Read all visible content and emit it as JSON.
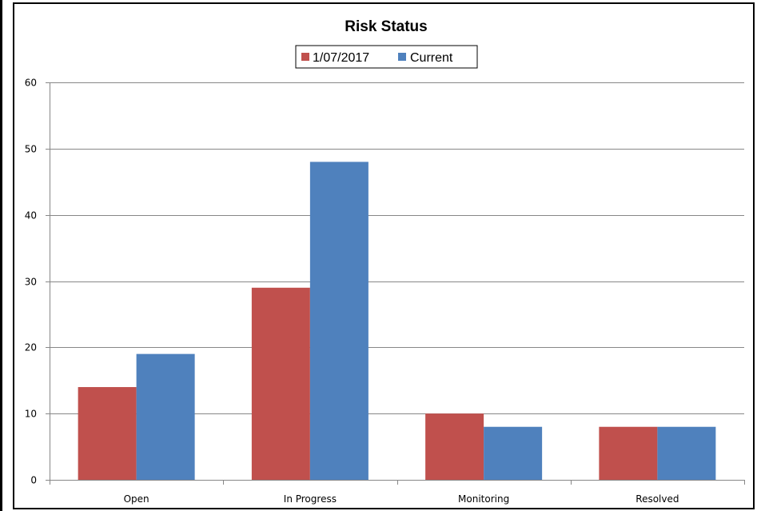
{
  "chart_data": {
    "type": "bar",
    "title": "Risk Status",
    "categories": [
      "Open",
      "In Progress",
      "Monitoring",
      "Resolved"
    ],
    "series": [
      {
        "name": "1/07/2017",
        "color": "#c0504d",
        "values": [
          14,
          29,
          10,
          8
        ]
      },
      {
        "name": "Current",
        "color": "#4f81bd",
        "values": [
          19,
          48,
          8,
          8
        ]
      }
    ],
    "ylim": [
      0,
      60
    ],
    "yticks": [
      0,
      10,
      20,
      30,
      40,
      50,
      60
    ],
    "grid": true,
    "legend_position": "top"
  }
}
